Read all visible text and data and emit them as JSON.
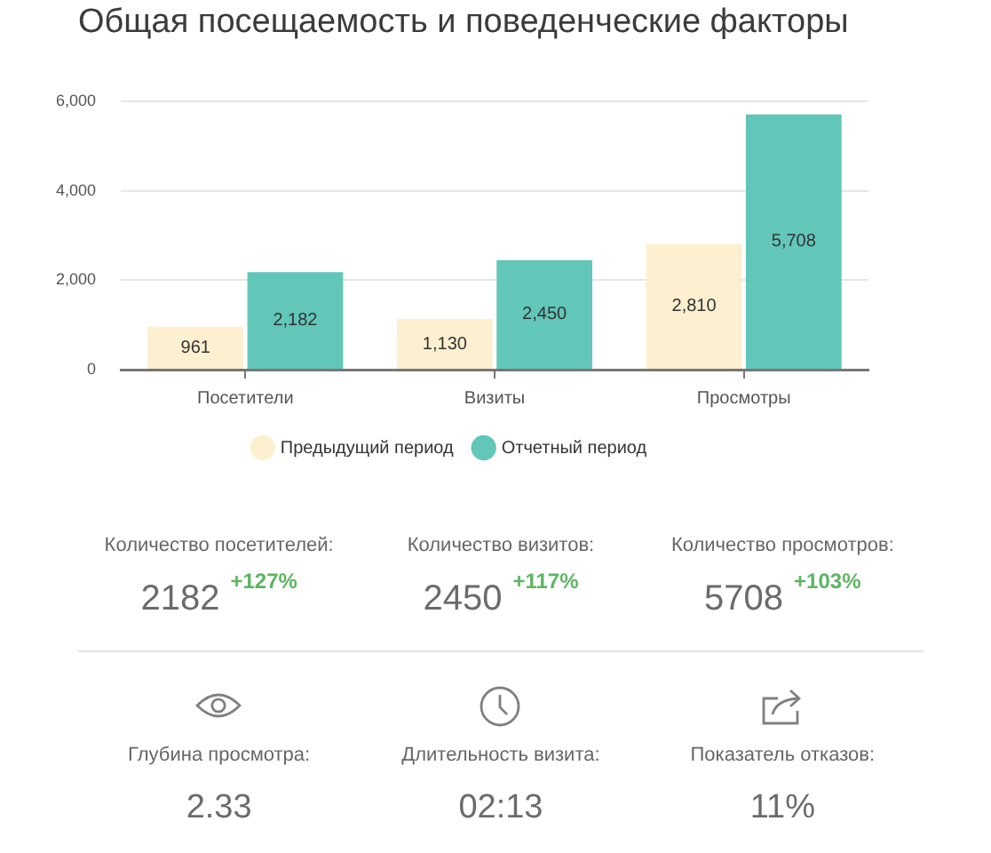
{
  "chart_data": [
    {
      "type": "bar",
      "title": "Общая посещаемость и поведенческие факторы",
      "categories": [
        "Посетители",
        "Визиты",
        "Просмотры"
      ],
      "series": [
        {
          "name": "Предыдущий период",
          "color": "#fdf0d0",
          "values": [
            961,
            1130,
            2810
          ],
          "value_labels": [
            "961",
            "1,130",
            "2,810"
          ]
        },
        {
          "name": "Отчетный период",
          "color": "#62c6b9",
          "values": [
            2182,
            2450,
            5708
          ],
          "value_labels": [
            "2,182",
            "2,450",
            "5,708"
          ]
        }
      ],
      "ylim": [
        0,
        6000
      ],
      "yticks": [
        0,
        {
          "value": 2000,
          "label": "2,000"
        },
        {
          "value": 4000,
          "label": "4,000"
        },
        {
          "value": 6000,
          "label": "6,000"
        }
      ],
      "grid": "y",
      "legend": "bottom"
    },
    {
      "type": "other",
      "annotations": [
        "Количество посетителей:",
        "2182",
        "+127%",
        "Количество визитов:",
        "2450",
        "+117%",
        "Количество просмотров:",
        "5708",
        "+103%"
      ]
    },
    {
      "type": "other",
      "annotations": [
        "Глубина просмотра:",
        "2.33",
        "Длительность визита:",
        "02:13",
        "Показатель отказов:",
        "11%"
      ]
    }
  ]
}
